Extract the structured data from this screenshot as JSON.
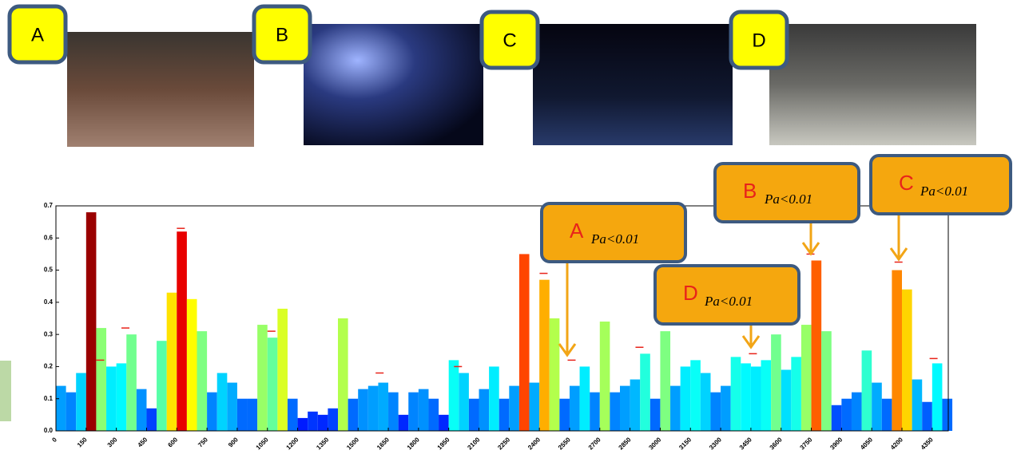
{
  "panels": [
    "A",
    "B",
    "C",
    "D"
  ],
  "chart_data": {
    "type": "bar",
    "colormap": "jet",
    "x": [
      0,
      50,
      100,
      150,
      200,
      250,
      300,
      350,
      400,
      450,
      500,
      550,
      600,
      650,
      700,
      750,
      800,
      850,
      900,
      950,
      1000,
      1050,
      1100,
      1150,
      1200,
      1250,
      1300,
      1350,
      1400,
      1450,
      1500,
      1550,
      1600,
      1650,
      1700,
      1750,
      1800,
      1850,
      1900,
      1950,
      2000,
      2050,
      2100,
      2150,
      2200,
      2250,
      2300,
      2350,
      2400,
      2450,
      2500,
      2550,
      2600,
      2650,
      2700,
      2750,
      2800,
      2850,
      2900,
      2950,
      3000,
      3050,
      3100,
      3150,
      3200,
      3250,
      3300,
      3350,
      3400,
      3450,
      3500,
      3550,
      3600,
      3650,
      3700,
      3750,
      3800,
      3850,
      3900,
      3950,
      4000,
      4050,
      4100,
      4150,
      4200,
      4250,
      4300,
      4350,
      4400
    ],
    "values": [
      0.14,
      0.12,
      0.18,
      0.68,
      0.32,
      0.2,
      0.21,
      0.3,
      0.13,
      0.07,
      0.28,
      0.43,
      0.62,
      0.41,
      0.31,
      0.12,
      0.18,
      0.15,
      0.1,
      0.1,
      0.33,
      0.29,
      0.38,
      0.1,
      0.04,
      0.06,
      0.05,
      0.07,
      0.35,
      0.1,
      0.13,
      0.14,
      0.15,
      0.12,
      0.05,
      0.12,
      0.13,
      0.1,
      0.05,
      0.22,
      0.18,
      0.1,
      0.13,
      0.2,
      0.1,
      0.14,
      0.55,
      0.15,
      0.47,
      0.35,
      0.1,
      0.14,
      0.2,
      0.12,
      0.34,
      0.12,
      0.14,
      0.16,
      0.24,
      0.1,
      0.31,
      0.14,
      0.2,
      0.22,
      0.18,
      0.12,
      0.14,
      0.23,
      0.21,
      0.2,
      0.22,
      0.3,
      0.19,
      0.23,
      0.33,
      0.53,
      0.31,
      0.08,
      0.1,
      0.12,
      0.25,
      0.15,
      0.1,
      0.5,
      0.44,
      0.16,
      0.09,
      0.21,
      0.1
    ],
    "significance_marks": {
      "color": "#e8231a",
      "x": [
        220,
        345,
        620,
        1070,
        1607,
        1996,
        2421,
        2560,
        2897,
        3460,
        3746,
        4183,
        4357
      ],
      "values": [
        0.22,
        0.32,
        0.63,
        0.31,
        0.18,
        0.2,
        0.49,
        0.22,
        0.26,
        0.24,
        0.55,
        0.525,
        0.225
      ]
    },
    "xlim": [
      0,
      4430
    ],
    "ylim": [
      0,
      0.7
    ],
    "xticks": [
      0,
      150,
      300,
      450,
      600,
      750,
      900,
      1050,
      1200,
      1350,
      1500,
      1650,
      1800,
      1950,
      2100,
      2250,
      2400,
      2550,
      2700,
      2850,
      3000,
      3150,
      3300,
      3450,
      3600,
      3750,
      3900,
      4050,
      4200,
      4350
    ],
    "yticks": [
      {
        "value": 0,
        "label": "0.0"
      },
      0.1,
      0.2,
      0.3,
      0.4,
      0.5,
      0.6,
      0.7
    ],
    "annotations": [
      {
        "letter": "A",
        "text": "Pa<0.01"
      },
      {
        "letter": "B",
        "text": "Pa<0.01"
      },
      {
        "letter": "C",
        "text": "Pa<0.01"
      },
      {
        "letter": "D",
        "text": "Pa<0.01"
      }
    ]
  }
}
